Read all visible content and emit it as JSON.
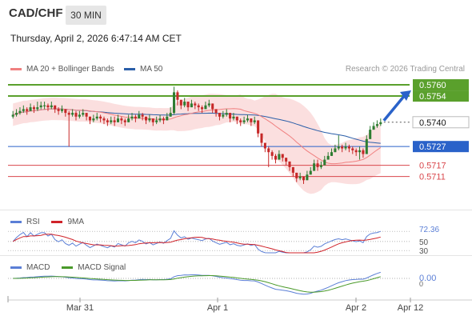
{
  "header": {
    "pair": "CAD/CHF",
    "timeframe": "30 MIN",
    "datetime": "Thursday, April 2, 2026 6:47:14 AM CET"
  },
  "legend": {
    "ma20_label": "MA 20 + Bollinger Bands",
    "ma50_label": "MA 50",
    "credit": "Research © 2026 Trading Central",
    "rsi_label": "RSI",
    "rsi_ma_label": "9MA",
    "macd_label": "MACD",
    "macd_signal_label": "MACD Signal"
  },
  "colors": {
    "up": "#2e7d32",
    "down": "#c62828",
    "ma20": "#f08080",
    "ma50": "#2a5ea8",
    "bands": "#f9d4d4",
    "green_level": "#5aa02c",
    "blue_level": "#2a62c9",
    "red_level": "#d9464b",
    "last_price_tag": "#333333",
    "rsi": "#5b7fd6",
    "rsi_ma": "#d0232a",
    "macd": "#5b7fd6",
    "macd_signal": "#4a9a2a"
  },
  "chart_data": [
    {
      "type": "candlestick",
      "title": "CAD/CHF",
      "ylim": [
        0.5695,
        0.5766
      ],
      "x_ticks": [
        "Mar 31",
        "Apr 1",
        "Apr 2",
        "Apr 12"
      ],
      "levels": [
        {
          "value": 0.576,
          "label": "0.5760",
          "kind": "resistance"
        },
        {
          "value": 0.5754,
          "label": "0.5754",
          "kind": "resistance"
        },
        {
          "value": 0.574,
          "label": "0.5740",
          "kind": "last"
        },
        {
          "value": 0.5727,
          "label": "0.5727",
          "kind": "pivot"
        },
        {
          "value": 0.5717,
          "label": "0.5717",
          "kind": "support"
        },
        {
          "value": 0.5711,
          "label": "0.5711",
          "kind": "support"
        }
      ],
      "target_arrow": {
        "from": 0.574,
        "to": 0.5757
      },
      "close": [
        0.5744,
        0.5745,
        0.5746,
        0.5747,
        0.5746,
        0.5748,
        0.5747,
        0.5748,
        0.5749,
        0.5749,
        0.5748,
        0.5749,
        0.5747,
        0.5746,
        0.5747,
        0.5745,
        0.5744,
        0.5745,
        0.5743,
        0.5744,
        0.5745,
        0.5743,
        0.5741,
        0.5742,
        0.5743,
        0.5742,
        0.5741,
        0.574,
        0.5741,
        0.574,
        0.5742,
        0.5741,
        0.574,
        0.5742,
        0.5743,
        0.5742,
        0.5744,
        0.5743,
        0.5741,
        0.5742,
        0.574,
        0.5741,
        0.5742,
        0.5741,
        0.5743,
        0.5745,
        0.5756,
        0.5752,
        0.5749,
        0.5751,
        0.5748,
        0.575,
        0.5749,
        0.5748,
        0.5747,
        0.5749,
        0.575,
        0.5747,
        0.5745,
        0.5743,
        0.5744,
        0.5745,
        0.5742,
        0.5743,
        0.5741,
        0.574,
        0.5741,
        0.5742,
        0.574,
        0.5741,
        0.5734,
        0.5729,
        0.5726,
        0.5724,
        0.5722,
        0.572,
        0.5723,
        0.5721,
        0.5719,
        0.5716,
        0.5713,
        0.571,
        0.5711,
        0.5709,
        0.5712,
        0.5714,
        0.5718,
        0.5716,
        0.5717,
        0.572,
        0.5722,
        0.5724,
        0.5726,
        0.5727,
        0.5726,
        0.5727,
        0.5726,
        0.5725,
        0.5724,
        0.5725,
        0.5723,
        0.5731,
        0.5736,
        0.5738,
        0.5739,
        0.574
      ],
      "high": [
        0.5746,
        0.5747,
        0.5748,
        0.5749,
        0.5748,
        0.575,
        0.5749,
        0.5751,
        0.5751,
        0.5751,
        0.575,
        0.5751,
        0.5749,
        0.5748,
        0.5749,
        0.5747,
        0.5746,
        0.5747,
        0.5746,
        0.5746,
        0.5747,
        0.5745,
        0.5743,
        0.5744,
        0.5745,
        0.5744,
        0.5743,
        0.5742,
        0.5743,
        0.5743,
        0.5744,
        0.5743,
        0.5742,
        0.5744,
        0.5745,
        0.5744,
        0.5746,
        0.5745,
        0.5743,
        0.5744,
        0.5742,
        0.5743,
        0.5744,
        0.5743,
        0.5745,
        0.5748,
        0.5759,
        0.5757,
        0.5752,
        0.5753,
        0.575,
        0.5752,
        0.5751,
        0.575,
        0.5749,
        0.5751,
        0.5752,
        0.575,
        0.5747,
        0.5745,
        0.5746,
        0.5747,
        0.5745,
        0.5745,
        0.5743,
        0.5742,
        0.5743,
        0.5744,
        0.5742,
        0.5743,
        0.574,
        0.5734,
        0.5729,
        0.5727,
        0.5725,
        0.5723,
        0.5725,
        0.5723,
        0.5721,
        0.5719,
        0.5716,
        0.5713,
        0.5713,
        0.5711,
        0.5714,
        0.5716,
        0.572,
        0.572,
        0.5719,
        0.5722,
        0.5724,
        0.5726,
        0.5728,
        0.5733,
        0.5728,
        0.5729,
        0.5728,
        0.5727,
        0.5726,
        0.5727,
        0.5726,
        0.5733,
        0.5738,
        0.574,
        0.5741,
        0.5742
      ],
      "low": [
        0.5742,
        0.5743,
        0.5744,
        0.5745,
        0.5744,
        0.5746,
        0.5745,
        0.5746,
        0.5747,
        0.5747,
        0.5746,
        0.5747,
        0.5745,
        0.5744,
        0.5745,
        0.5743,
        0.5727,
        0.5743,
        0.5741,
        0.5742,
        0.5743,
        0.5741,
        0.5739,
        0.574,
        0.5741,
        0.574,
        0.5739,
        0.5738,
        0.5739,
        0.5738,
        0.574,
        0.5739,
        0.5738,
        0.574,
        0.5741,
        0.574,
        0.5742,
        0.5741,
        0.5739,
        0.574,
        0.5738,
        0.5739,
        0.574,
        0.5739,
        0.5741,
        0.5743,
        0.5744,
        0.5749,
        0.5747,
        0.5748,
        0.5746,
        0.5748,
        0.5747,
        0.5746,
        0.5745,
        0.5747,
        0.5748,
        0.5745,
        0.5743,
        0.5741,
        0.5742,
        0.5743,
        0.574,
        0.5741,
        0.5739,
        0.5738,
        0.5739,
        0.574,
        0.5738,
        0.5739,
        0.5732,
        0.5727,
        0.5724,
        0.5716,
        0.572,
        0.5718,
        0.572,
        0.5719,
        0.5717,
        0.5714,
        0.5711,
        0.5708,
        0.5709,
        0.5707,
        0.571,
        0.5712,
        0.5715,
        0.5714,
        0.5715,
        0.5718,
        0.572,
        0.5722,
        0.5724,
        0.5725,
        0.5724,
        0.5725,
        0.5724,
        0.5723,
        0.5722,
        0.572,
        0.5721,
        0.5729,
        0.5734,
        0.5736,
        0.5737,
        0.5738
      ]
    },
    {
      "type": "line",
      "title": "RSI",
      "ticks": [
        "72.36",
        "50",
        "30"
      ],
      "series": [
        {
          "name": "RSI"
        },
        {
          "name": "9MA"
        }
      ],
      "rsi_last": 72.36
    },
    {
      "type": "line",
      "title": "MACD",
      "ticks": [
        "0.00"
      ],
      "series": [
        {
          "name": "MACD"
        },
        {
          "name": "MACD Signal"
        }
      ]
    }
  ]
}
